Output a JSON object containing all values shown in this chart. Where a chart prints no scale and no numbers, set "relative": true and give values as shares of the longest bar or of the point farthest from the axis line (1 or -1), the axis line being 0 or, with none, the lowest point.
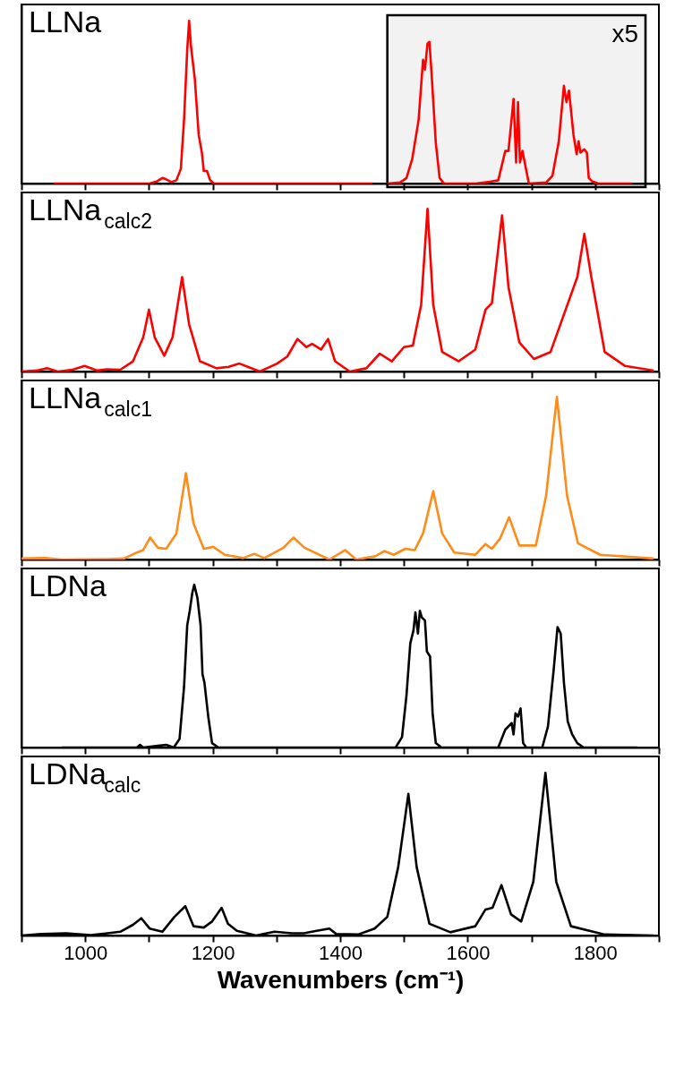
{
  "chart_data": [
    {
      "type": "line",
      "title": "LLNa",
      "relative": true,
      "xlim": [
        900,
        1900
      ],
      "xticks": [
        {
          "value": 900,
          "label": null
        },
        1000,
        {
          "value": 1100,
          "label": null
        },
        1200,
        {
          "value": 1300,
          "label": null
        },
        1400,
        {
          "value": 1500,
          "label": null
        },
        1600,
        {
          "value": 1700,
          "label": null
        },
        1800,
        {
          "value": 1900,
          "label": null
        }
      ],
      "tick_labels": false,
      "grid": false,
      "series": [
        {
          "color": "#ff0000",
          "x": [
            950,
            1101,
            1113,
            1121,
            1127,
            1135,
            1143,
            1150,
            1155,
            1160,
            1163,
            1166,
            1172,
            1178,
            1183,
            1186,
            1191,
            1196,
            1202,
            1451
          ],
          "values": [
            0,
            0,
            0.014,
            0.034,
            0.026,
            0.009,
            0.02,
            0.09,
            0.39,
            0.82,
            1.0,
            0.84,
            0.64,
            0.3,
            0.19,
            0.077,
            0.077,
            0.02,
            0,
            0
          ]
        },
        {
          "color": "#ff0000",
          "x": [
            1474,
            1494,
            1504,
            1513,
            1523,
            1530,
            1533,
            1537,
            1540,
            1543,
            1550,
            1556,
            1563,
            1612,
            1635,
            1648,
            1659,
            1664,
            1672,
            1676,
            1679,
            1682,
            1686,
            1696,
            1723,
            1733,
            1743,
            1751,
            1755,
            1759,
            1766,
            1771,
            1774,
            1777,
            1783,
            1787,
            1790,
            1795,
            1805,
            1857
          ],
          "values": [
            0,
            0.006,
            0.034,
            0.15,
            0.39,
            0.76,
            0.7,
            0.86,
            0.87,
            0.7,
            0.25,
            0.034,
            0,
            0,
            0.011,
            0.02,
            0.2,
            0.2,
            0.52,
            0.13,
            0.5,
            0.13,
            0.2,
            0,
            0.006,
            0.048,
            0.26,
            0.6,
            0.5,
            0.57,
            0.3,
            0.18,
            0.26,
            0.19,
            0.21,
            0.19,
            0.034,
            0.014,
            0,
            0
          ]
        }
      ],
      "bands": [
        {
          "axis": "x",
          "from": 1474,
          "to": 1879,
          "color": "#000000"
        }
      ],
      "annotations": [
        "x5"
      ]
    },
    {
      "type": "line",
      "title": "LLNa$_{calc2}$",
      "relative": true,
      "xlim": [
        900,
        1900
      ],
      "xticks": [
        {
          "value": 900,
          "label": null
        },
        1000,
        {
          "value": 1100,
          "label": null
        },
        1200,
        {
          "value": 1300,
          "label": null
        },
        1400,
        {
          "value": 1500,
          "label": null
        },
        1600,
        {
          "value": 1700,
          "label": null
        },
        1800,
        {
          "value": 1900,
          "label": null
        }
      ],
      "tick_labels": false,
      "grid": false,
      "series": [
        {
          "color": "#ff0000",
          "x": [
            900,
            924,
            940,
            957,
            980,
            999,
            1019,
            1034,
            1055,
            1075,
            1091,
            1100,
            1109,
            1124,
            1137,
            1152,
            1163,
            1180,
            1206,
            1225,
            1242,
            1255,
            1274,
            1301,
            1317,
            1333,
            1347,
            1356,
            1370,
            1381,
            1392,
            1415,
            1441,
            1462,
            1481,
            1500,
            1514,
            1527,
            1537,
            1546,
            1560,
            1586,
            1612,
            1628,
            1638,
            1654,
            1664,
            1681,
            1704,
            1730,
            1772,
            1783,
            1794,
            1815,
            1847,
            1892
          ],
          "values": [
            0,
            0.006,
            0.02,
            0,
            0.011,
            0.034,
            0.006,
            0.014,
            0.011,
            0.063,
            0.21,
            0.38,
            0.21,
            0.097,
            0.21,
            0.58,
            0.29,
            0.063,
            0.02,
            0.029,
            0.049,
            0.029,
            0,
            0.049,
            0.092,
            0.2,
            0.15,
            0.17,
            0.135,
            0.2,
            0.063,
            0,
            0.02,
            0.11,
            0.063,
            0.15,
            0.16,
            0.41,
            1.0,
            0.41,
            0.12,
            0.063,
            0.135,
            0.38,
            0.42,
            0.96,
            0.52,
            0.18,
            0.077,
            0.12,
            0.58,
            0.845,
            0.58,
            0.12,
            0.034,
            0.006
          ]
        }
      ]
    },
    {
      "type": "line",
      "title": "LLNa$_{calc1}$",
      "relative": true,
      "xlim": [
        900,
        1900
      ],
      "xticks": [
        {
          "value": 900,
          "label": null
        },
        1000,
        {
          "value": 1100,
          "label": null
        },
        1200,
        {
          "value": 1300,
          "label": null
        },
        1400,
        {
          "value": 1500,
          "label": null
        },
        1600,
        {
          "value": 1700,
          "label": null
        },
        1800,
        {
          "value": 1900,
          "label": null
        }
      ],
      "tick_labels": false,
      "grid": false,
      "series": [
        {
          "color": "#ff8c1a",
          "x": [
            900,
            937,
            963,
            1035,
            1061,
            1081,
            1091,
            1102,
            1114,
            1127,
            1143,
            1158,
            1170,
            1186,
            1201,
            1219,
            1248,
            1265,
            1281,
            1311,
            1327,
            1344,
            1383,
            1408,
            1425,
            1455,
            1469,
            1484,
            1502,
            1517,
            1530,
            1546,
            1560,
            1579,
            1612,
            1628,
            1638,
            1651,
            1665,
            1681,
            1707,
            1723,
            1740,
            1756,
            1773,
            1808,
            1892
          ],
          "values": [
            0.006,
            0.009,
            0,
            0.003,
            0.006,
            0.043,
            0.058,
            0.135,
            0.072,
            0.066,
            0.16,
            0.53,
            0.22,
            0.066,
            0.078,
            0.029,
            0.009,
            0.035,
            0.009,
            0.072,
            0.135,
            0.072,
            0,
            0.058,
            0,
            0.02,
            0.052,
            0.029,
            0.066,
            0.058,
            0.16,
            0.42,
            0.16,
            0.043,
            0.029,
            0.095,
            0.066,
            0.13,
            0.26,
            0.086,
            0.086,
            0.39,
            1.0,
            0.39,
            0.1,
            0.029,
            0.006
          ]
        }
      ]
    },
    {
      "type": "line",
      "title": "LDNa",
      "relative": true,
      "xlim": [
        900,
        1900
      ],
      "xticks": [
        {
          "value": 900,
          "label": null
        },
        1000,
        {
          "value": 1100,
          "label": null
        },
        1200,
        {
          "value": 1300,
          "label": null
        },
        1400,
        {
          "value": 1500,
          "label": null
        },
        1600,
        {
          "value": 1700,
          "label": null
        },
        1800,
        {
          "value": 1900,
          "label": null
        }
      ],
      "tick_labels": false,
      "grid": false,
      "series": [
        {
          "color": "#000000",
          "x": [
            963,
            1081,
            1086,
            1091,
            1114,
            1127,
            1139,
            1148,
            1155,
            1160,
            1164,
            1168,
            1171,
            1176,
            1181,
            1184,
            1187,
            1193,
            1199,
            1209,
            1487,
            1497,
            1504,
            1510,
            1515,
            1518,
            1522,
            1525,
            1528,
            1533,
            1536,
            1541,
            1545,
            1550,
            1559,
            1648,
            1659,
            1664,
            1669,
            1672,
            1675,
            1679,
            1683,
            1687,
            1692,
            1717,
            1726,
            1735,
            1741,
            1746,
            1751,
            1757,
            1764,
            1772,
            1782,
            1866
          ],
          "values": [
            0,
            0,
            0.016,
            0,
            0.011,
            0.016,
            0,
            0.053,
            0.37,
            0.75,
            0.84,
            0.95,
            1.0,
            0.92,
            0.75,
            0.45,
            0.4,
            0.19,
            0.027,
            0,
            0,
            0.064,
            0.32,
            0.64,
            0.72,
            0.83,
            0.7,
            0.84,
            0.8,
            0.78,
            0.59,
            0.56,
            0.21,
            0.027,
            0,
            0,
            0.11,
            0.13,
            0.15,
            0.08,
            0.21,
            0.19,
            0.24,
            0.027,
            0,
            0,
            0.13,
            0.48,
            0.74,
            0.7,
            0.4,
            0.16,
            0.08,
            0.027,
            0,
            0
          ]
        }
      ]
    },
    {
      "type": "line",
      "title": "LDNa$_{calc}$",
      "xlabel": "Wavenumbers (cm⁻¹)",
      "relative": true,
      "xlim": [
        900,
        1900
      ],
      "xticks": [
        {
          "value": 900,
          "label": null
        },
        1000,
        {
          "value": 1100,
          "label": null
        },
        1200,
        {
          "value": 1300,
          "label": null
        },
        1400,
        {
          "value": 1500,
          "label": null
        },
        1600,
        {
          "value": 1700,
          "label": null
        },
        1800,
        {
          "value": 1900,
          "label": null
        }
      ],
      "tick_labels": "x",
      "grid": false,
      "series": [
        {
          "color": "#000000",
          "x": [
            900,
            931,
            970,
            1009,
            1035,
            1055,
            1075,
            1088,
            1101,
            1121,
            1140,
            1157,
            1170,
            1186,
            1199,
            1214,
            1224,
            1238,
            1268,
            1297,
            1324,
            1343,
            1363,
            1383,
            1394,
            1428,
            1454,
            1474,
            1491,
            1507,
            1520,
            1540,
            1573,
            1612,
            1628,
            1639,
            1653,
            1668,
            1684,
            1703,
            1722,
            1739,
            1762,
            1815,
            1892
          ],
          "values": [
            0,
            0.009,
            0.014,
            0.003,
            0.014,
            0.023,
            0.066,
            0.106,
            0.043,
            0.023,
            0.115,
            0.18,
            0.057,
            0.049,
            0.086,
            0.17,
            0.072,
            0.029,
            0,
            0.023,
            0.014,
            0.014,
            0.029,
            0.043,
            0.009,
            0.006,
            0.043,
            0.115,
            0.42,
            0.87,
            0.42,
            0.072,
            0.02,
            0.057,
            0.16,
            0.17,
            0.31,
            0.13,
            0.086,
            0.33,
            1.0,
            0.33,
            0.057,
            0.006,
            0
          ]
        }
      ]
    }
  ]
}
